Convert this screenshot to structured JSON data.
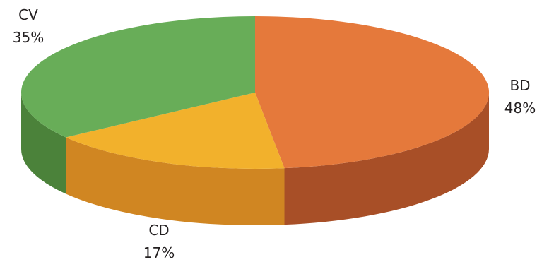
{
  "chart_data": {
    "type": "pie",
    "style": "3d",
    "slices": [
      {
        "label": "BD",
        "value": 48,
        "value_label": "48%",
        "color": "#e5793b",
        "side_color": "#a84f27"
      },
      {
        "label": "CD",
        "value": 17,
        "value_label": "17%",
        "color": "#f2b12c",
        "side_color": "#d08622"
      },
      {
        "label": "CV",
        "value": 35,
        "value_label": "35%",
        "color": "#68ad58",
        "side_color": "#4b823a"
      }
    ],
    "title": "",
    "legend": "none"
  }
}
